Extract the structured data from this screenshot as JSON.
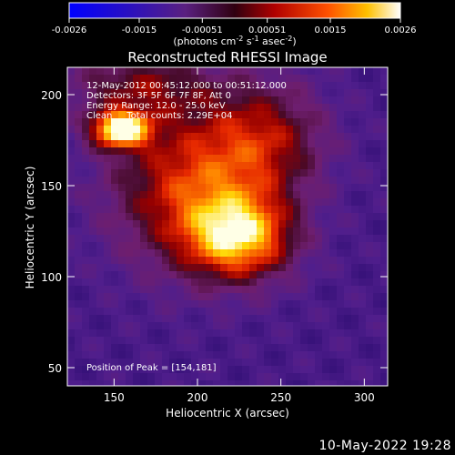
{
  "colorbar": {
    "ticks": [
      {
        "value": -0.0026,
        "label": "-0.0026"
      },
      {
        "value": -0.0015,
        "label": "-0.0015"
      },
      {
        "value": -0.00051,
        "label": "-0.00051"
      },
      {
        "value": 0.00051,
        "label": "0.00051"
      },
      {
        "value": 0.0015,
        "label": "0.0015"
      },
      {
        "value": 0.0026,
        "label": "0.0026"
      }
    ],
    "range": [
      -0.0026,
      0.0026
    ],
    "units_prefix": "(photons cm",
    "units_exp1": "-2",
    "units_mid": " s",
    "units_exp2": "-1",
    "units_mid2": " asec",
    "units_exp3": "-2",
    "units_suffix": ")"
  },
  "chart_data": {
    "type": "heatmap",
    "title": "Reconstructed RHESSI Image",
    "xlabel": "Heliocentric X (arcsec)",
    "ylabel": "Heliocentric Y (arcsec)",
    "xlim": [
      122,
      314
    ],
    "ylim": [
      40,
      215
    ],
    "xticks": [
      150,
      200,
      250,
      300
    ],
    "yticks": [
      50,
      100,
      150,
      200
    ],
    "info_lines": [
      "12-May-2012 00:45:12.000 to 00:51:12.000",
      "Detectors: 3F 5F 6F 7F 8F, Att 0",
      "Energy Range: 12.0 - 25.0 keV",
      "Clean     Total counts: 2.29E+04"
    ],
    "peak_label": "Position of Peak = [154,181]",
    "peak": [
      154,
      181
    ],
    "sources": [
      {
        "x": 154,
        "y": 181,
        "sx": 12,
        "sy": 7,
        "amp": 1.0
      },
      {
        "x": 225,
        "y": 122,
        "sx": 22,
        "sy": 16,
        "amp": 0.78
      },
      {
        "x": 195,
        "y": 150,
        "sx": 32,
        "sy": 30,
        "amp": 0.55
      },
      {
        "x": 240,
        "y": 175,
        "sx": 25,
        "sy": 22,
        "amp": 0.42
      },
      {
        "x": 165,
        "y": 205,
        "sx": 30,
        "sy": 12,
        "amp": 0.35
      }
    ]
  },
  "footer_date": "10-May-2022 19:28"
}
